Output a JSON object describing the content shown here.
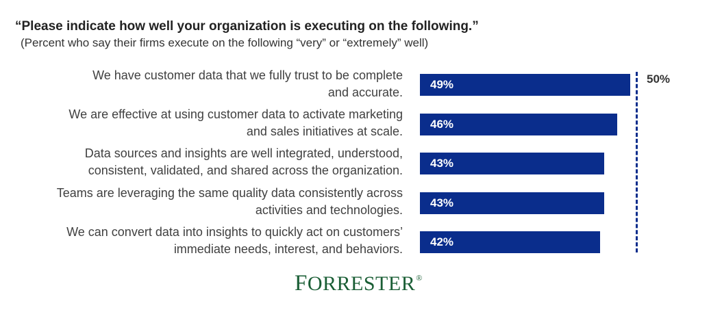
{
  "title": "“Please indicate how well your organization is executing on the following.”",
  "subtitle": "(Percent who say their firms execute on the following “very” or “extremely” well)",
  "chart_data": {
    "type": "bar",
    "orientation": "horizontal",
    "categories": [
      [
        "We have customer data that we fully trust to be complete",
        "and accurate."
      ],
      [
        "We are effective at using customer data to activate marketing",
        "and sales initiatives at scale."
      ],
      [
        "Data sources and insights are well integrated, understood,",
        "consistent, validated, and shared across the organization."
      ],
      [
        "Teams are leveraging the same quality data consistently across",
        "activities and technologies."
      ],
      [
        "We can convert data into insights to quickly act on customers’",
        "immediate needs, interest, and behaviors."
      ]
    ],
    "values": [
      49,
      46,
      43,
      43,
      42
    ],
    "value_labels": [
      "49%",
      "46%",
      "43%",
      "43%",
      "42%"
    ],
    "reference_line": {
      "value": 50,
      "label": "50%",
      "style": "dashed"
    },
    "xlim": [
      0,
      50
    ],
    "bar_color": "#0a2d8c",
    "grid": false
  },
  "logo": {
    "first": "F",
    "rest": "ORRESTER",
    "mark": "®"
  }
}
